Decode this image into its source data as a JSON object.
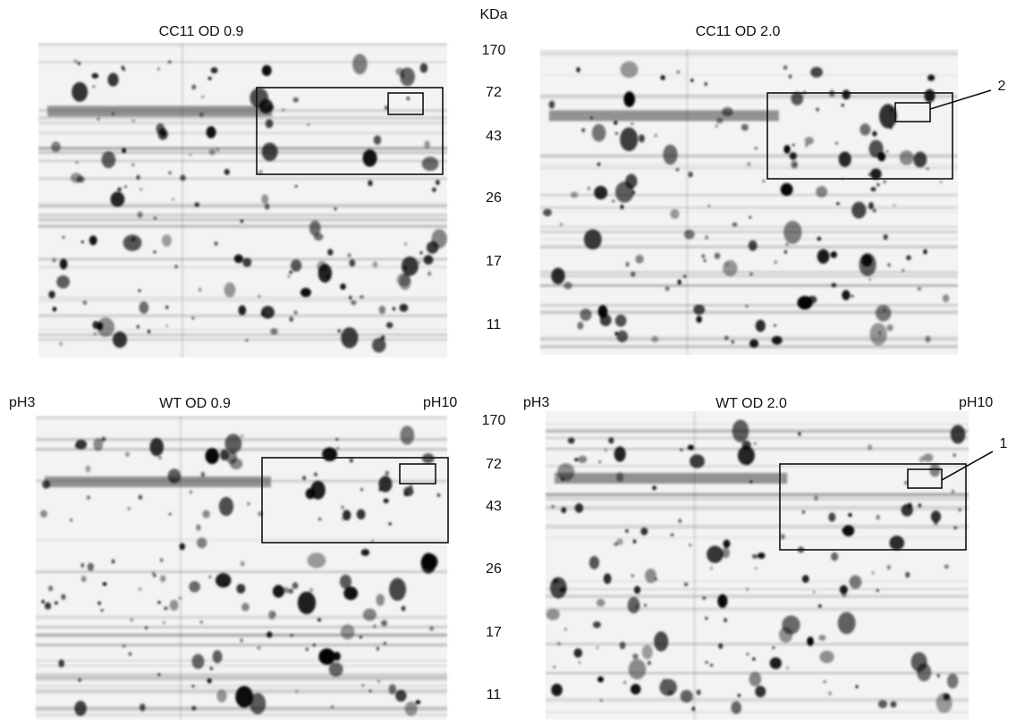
{
  "header": {
    "unit": "KDa"
  },
  "panels": [
    {
      "title": "CC11 OD 0.9"
    },
    {
      "title": "CC11 OD 2.0"
    },
    {
      "title": "WT OD 0.9",
      "left_label": "pH3",
      "right_label": "pH10"
    },
    {
      "title": "WT OD 2.0",
      "left_label": "pH3",
      "right_label": "pH10"
    }
  ],
  "markers_top": [
    "170",
    "72",
    "43",
    "26",
    "17",
    "11"
  ],
  "markers_bottom": [
    "170",
    "72",
    "43",
    "26",
    "17",
    "11"
  ],
  "callouts": [
    "2",
    "1"
  ]
}
